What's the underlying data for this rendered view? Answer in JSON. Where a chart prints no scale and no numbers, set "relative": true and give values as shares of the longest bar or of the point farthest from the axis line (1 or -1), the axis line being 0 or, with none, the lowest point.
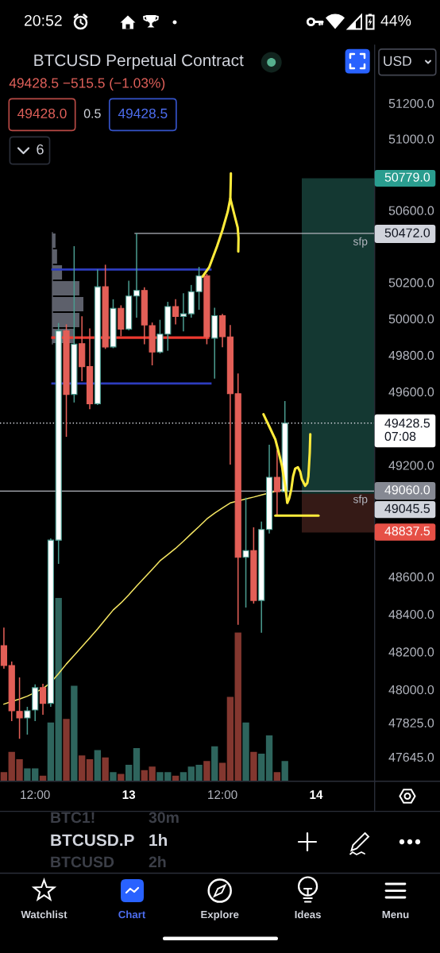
{
  "chart_data": [
    {
      "type": "candlestick",
      "title": "BTCUSD Perpetual Contract",
      "subtitle": "49428.5 −515.5 (−1.03%)",
      "categories": [
        null,
        null,
        null,
        null,
        "12:00",
        null,
        null,
        null,
        null,
        null,
        null,
        null,
        null,
        null,
        null,
        null,
        "13",
        null,
        null,
        null,
        null,
        null,
        null,
        null,
        null,
        null,
        null,
        null,
        "12:00",
        null,
        null,
        null,
        null,
        null,
        null,
        null,
        null,
        null,
        null,
        null,
        "14",
        null,
        null,
        null,
        null,
        null,
        null,
        null
      ],
      "ohlc": [
        [
          48232,
          48329,
          48110,
          48127
        ],
        [
          48127,
          48148,
          47833,
          47888
        ],
        [
          47885,
          48064,
          47741,
          47850
        ],
        [
          47850,
          47909,
          47762,
          47888
        ],
        [
          47892,
          48027,
          47833,
          48010
        ],
        [
          48010,
          48030,
          47867,
          47927
        ],
        [
          47927,
          48805,
          47909,
          48796
        ],
        [
          48796,
          49976,
          48669,
          49933
        ],
        [
          49933,
          49969,
          49354,
          49585
        ],
        [
          49585,
          50401,
          49541,
          49860
        ],
        [
          49863,
          50013,
          49657,
          49737
        ],
        [
          49737,
          49947,
          49505,
          49534
        ],
        [
          49534,
          50272,
          49527,
          50176
        ],
        [
          50176,
          50298,
          49834,
          49845
        ],
        [
          49845,
          50107,
          49838,
          50057
        ],
        [
          50057,
          50074,
          49904,
          49943
        ],
        [
          49943,
          50210,
          49936,
          50125
        ],
        [
          50125,
          50472,
          50006,
          50156
        ],
        [
          50156,
          50173,
          49860,
          49966
        ],
        [
          49962,
          49979,
          49744,
          49817
        ],
        [
          49817,
          49994,
          49809,
          49915
        ],
        [
          49915,
          50093,
          49824,
          50067
        ],
        [
          50067,
          50107,
          49969,
          50013
        ],
        [
          50013,
          50140,
          49930,
          50027
        ],
        [
          50027,
          50186,
          50006,
          50149
        ],
        [
          50149,
          50286,
          50049,
          50237
        ],
        [
          50237,
          50247,
          49860,
          49901
        ],
        [
          49893,
          50060,
          49671,
          50017
        ],
        [
          50017,
          50027,
          49843,
          49901
        ],
        [
          49900,
          49965,
          49203,
          49589
        ],
        [
          49589,
          49700,
          48343,
          48704
        ],
        [
          48704,
          49024,
          48435,
          48740
        ],
        [
          48740,
          48865,
          48456,
          48473
        ],
        [
          48473,
          48896,
          48301,
          48853
        ],
        [
          48853,
          49311,
          48832,
          49135
        ],
        [
          49135,
          49282,
          48932,
          49057
        ],
        [
          49057,
          49549,
          49057,
          49428.5
        ],
        null,
        null,
        null,
        null,
        null,
        null,
        null,
        null,
        null,
        null,
        null
      ],
      "colors": [
        "#e35f57",
        "#e35f57",
        "#e35f57",
        "#ffffff",
        "#ffffff",
        "#e35f57",
        "#ffffff",
        "#ffffff",
        "#e35f57",
        "#ffffff",
        "#e35f57",
        "#e35f57",
        "#ffffff",
        "#e35f57",
        "#ffffff",
        "#e35f57",
        "#ffffff",
        "#ffffff",
        "#e35f57",
        "#e35f57",
        "#ffffff",
        "#ffffff",
        "#e35f57",
        "#ffffff",
        "#ffffff",
        "#ffffff",
        "#e35f57",
        "#ffffff",
        "#e35f57",
        "#e35f57",
        "#e35f57",
        "#ffffff",
        "#e35f57",
        "#ffffff",
        "#ffffff",
        "#e35f57",
        "#ffffff",
        null,
        null,
        null,
        null,
        null,
        null,
        null,
        null,
        null,
        null,
        null
      ],
      "series": [
        {
          "type": "line",
          "color": "#f5e663",
          "values": [
            47923,
            47937,
            47950,
            47965,
            null,
            48005,
            48037,
            48084,
            48135,
            48181,
            48227,
            48274,
            48321,
            48372,
            48422,
            48460,
            48503,
            48550,
            48594,
            48639,
            48685,
            48718,
            48752,
            48790,
            48830,
            48869,
            48910,
            48941,
            48969,
            48996,
            null,
            49018,
            49028,
            49039,
            49050,
            49061,
            49071,
            null,
            null,
            null,
            null,
            null,
            null,
            null,
            null,
            null,
            null,
            null
          ]
        }
      ],
      "log": true,
      "ylim": [
        47518,
        51528
      ],
      "yticks": [
        {
          "value": 51200,
          "label": "51200.0"
        },
        {
          "value": 51000,
          "label": "51000.0"
        },
        {
          "value": 50600,
          "label": "50600.0"
        },
        {
          "value": 50200,
          "label": "50200.0"
        },
        {
          "value": 50000,
          "label": "50000.0"
        },
        {
          "value": 49800,
          "label": "49800.0"
        },
        {
          "value": 49600,
          "label": "49600.0"
        },
        {
          "value": 49200,
          "label": "49200.0"
        },
        {
          "value": 48600,
          "label": "48600.0"
        },
        {
          "value": 48400,
          "label": "48400.0"
        },
        {
          "value": 48200,
          "label": "48200.0"
        },
        {
          "value": 48000,
          "label": "48000.0"
        },
        {
          "value": 47825,
          "label": "47825.0"
        },
        {
          "value": 47645,
          "label": "47645.0"
        }
      ],
      "ref_lines": [
        {
          "axis": "y",
          "value": 50472,
          "label": "sfp",
          "color": "#b2b5be"
        },
        {
          "axis": "y",
          "value": 49060,
          "label": "sfp",
          "color": "#b2b5be"
        },
        {
          "axis": "y",
          "value": 49428.5,
          "color": "#d1d4dc",
          "line_style": "dotted"
        },
        {
          "axis": "y",
          "value": 50272,
          "color": "#2d3cbe"
        },
        {
          "axis": "y",
          "value": 49896,
          "color": "#ee3a30"
        },
        {
          "axis": "y",
          "value": 49645,
          "color": "#2d3cbe"
        }
      ],
      "bands": [
        {
          "axis": "y",
          "from": 49045.5,
          "to": 50779,
          "color": "#143832"
        },
        {
          "axis": "y",
          "from": 48837.5,
          "to": 49045.5,
          "color": "#351a16"
        }
      ],
      "annotations": [
        "20:52",
        "44%",
        "49428.0",
        "0.5",
        "49428.5",
        "6",
        "USD",
        "BTC1!",
        "30m",
        "BTCUSD.P",
        "1h",
        "BTCUSD",
        "2h",
        "Watchlist",
        "Chart",
        "Explore",
        "Ideas",
        "Menu",
        "50779.0",
        "50472.0",
        "49428.5\n07:08",
        "49060.0",
        "49045.5",
        "48837.5"
      ]
    },
    {
      "type": "bar",
      "relative": true,
      "categories": [
        null,
        null,
        null,
        null,
        null,
        null,
        null,
        null,
        null,
        null,
        null,
        null,
        null,
        null,
        null,
        null,
        null,
        null,
        null,
        null,
        null,
        null,
        null,
        null,
        null,
        null,
        null,
        null,
        null,
        null,
        null,
        null,
        null,
        null,
        null,
        null,
        null,
        null,
        null,
        null,
        null,
        null,
        null,
        null,
        null,
        null,
        null,
        null
      ],
      "values": [
        0.05,
        0.16,
        0.12,
        0.07,
        0.07,
        0.03,
        0.32,
        1,
        0.34,
        0.52,
        0.14,
        0.12,
        0.17,
        0.13,
        0.05,
        0.04,
        0.09,
        0.18,
        0.06,
        0.08,
        0.05,
        0.05,
        0.03,
        0.05,
        0.08,
        0.09,
        0.11,
        0.19,
        0.1,
        0.46,
        0.81,
        0.32,
        0.16,
        0.15,
        0.25,
        0.05,
        0.11,
        null,
        null,
        null,
        null,
        null,
        null,
        null,
        null,
        null,
        null,
        null
      ],
      "colors": [
        "#83372f",
        "#83372f",
        "#83372f",
        "#2e655d",
        "#2e655d",
        "#83372f",
        "#2e655d",
        "#2e655d",
        "#83372f",
        "#2e655d",
        "#83372f",
        "#83372f",
        "#2e655d",
        "#83372f",
        "#2e655d",
        "#83372f",
        "#2e655d",
        "#2e655d",
        "#83372f",
        "#83372f",
        "#2e655d",
        "#2e655d",
        "#83372f",
        "#2e655d",
        "#2e655d",
        "#2e655d",
        "#83372f",
        "#2e655d",
        "#83372f",
        "#83372f",
        "#83372f",
        "#2e655d",
        "#83372f",
        "#2e655d",
        "#2e655d",
        "#83372f",
        "#2e655d",
        null,
        null,
        null,
        null,
        null,
        null,
        null,
        null,
        null,
        null,
        null
      ]
    },
    {
      "type": "bar",
      "orientation": "horizontal",
      "relative": true,
      "categories": [
        null,
        null,
        null,
        null,
        null,
        null,
        null
      ],
      "values": [
        0.1,
        0.15,
        0.31,
        0.87,
        1,
        0.87,
        0.72
      ],
      "color": "#5d606b"
    }
  ]
}
